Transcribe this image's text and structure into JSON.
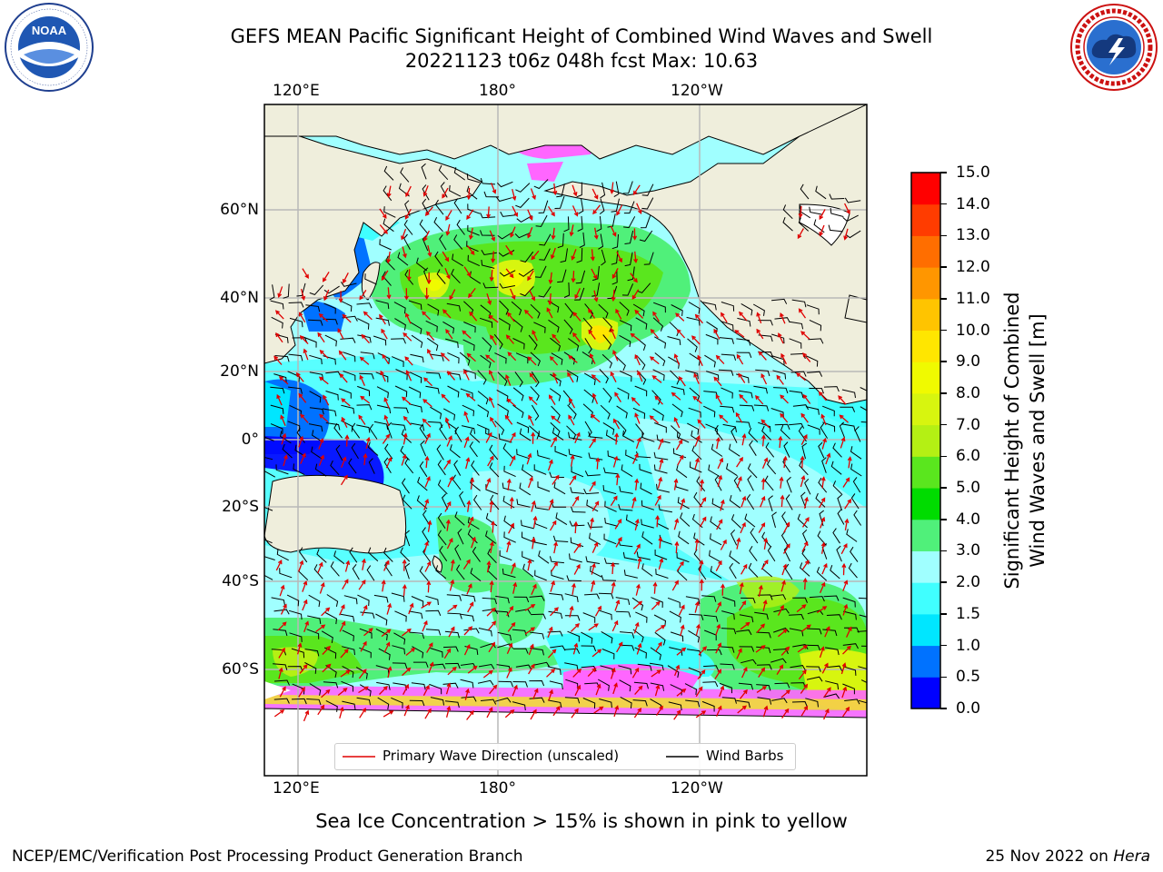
{
  "title": {
    "line1": "GEFS MEAN Pacific Significant Height of Combined Wind Waves and Swell",
    "line2": "20221123 t06z 048h fcst   Max: 10.63"
  },
  "logos": {
    "left": "NOAA",
    "left_ring": "NATIONAL OCEANIC AND ATMOSPHERIC ADMINISTRATION",
    "left_ring_bottom": "U.S. DEPARTMENT OF COMMERCE",
    "right_ring": "NATIONAL WEATHER SERVICE"
  },
  "map": {
    "lon_labels_top": [
      "120°E",
      "180°",
      "120°W"
    ],
    "lon_labels_bottom": [
      "120°E",
      "180°",
      "120°W"
    ],
    "lat_labels": [
      "60°N",
      "40°N",
      "20°N",
      "0°",
      "20°S",
      "40°S",
      "60°S"
    ],
    "legend": {
      "wave_direction": "Primary Wave Direction (unscaled)",
      "wind_barbs": "Wind Barbs"
    },
    "colors": {
      "land": "#efeedc",
      "wave_arrow": "#e00000",
      "barb": "#000000",
      "ice": "#ff66ff"
    }
  },
  "colorbar": {
    "label_line1": "Significant Height of Combined",
    "label_line2": "Wind Waves and Swell [m]",
    "ticks": [
      "0.0",
      "0.5",
      "1.0",
      "1.5",
      "2.0",
      "3.0",
      "4.0",
      "5.0",
      "6.0",
      "7.0",
      "8.0",
      "9.0",
      "10.0",
      "11.0",
      "12.0",
      "13.0",
      "14.0",
      "15.0"
    ],
    "colors": [
      "#0000ff",
      "#0072ff",
      "#00e6ff",
      "#40ffff",
      "#a0ffff",
      "#50f07a",
      "#00dc00",
      "#5ae61e",
      "#b4f014",
      "#d7f50f",
      "#f0fa00",
      "#ffe600",
      "#ffc400",
      "#ff9600",
      "#ff6e00",
      "#ff3c00",
      "#ff0000"
    ]
  },
  "caption": "Sea Ice Concentration > 15% is shown in pink to yellow",
  "footer": {
    "left": "NCEP/EMC/Verification Post Processing Product Generation Branch",
    "right_prefix": "25 Nov 2022 on ",
    "right_host": "Hera"
  }
}
